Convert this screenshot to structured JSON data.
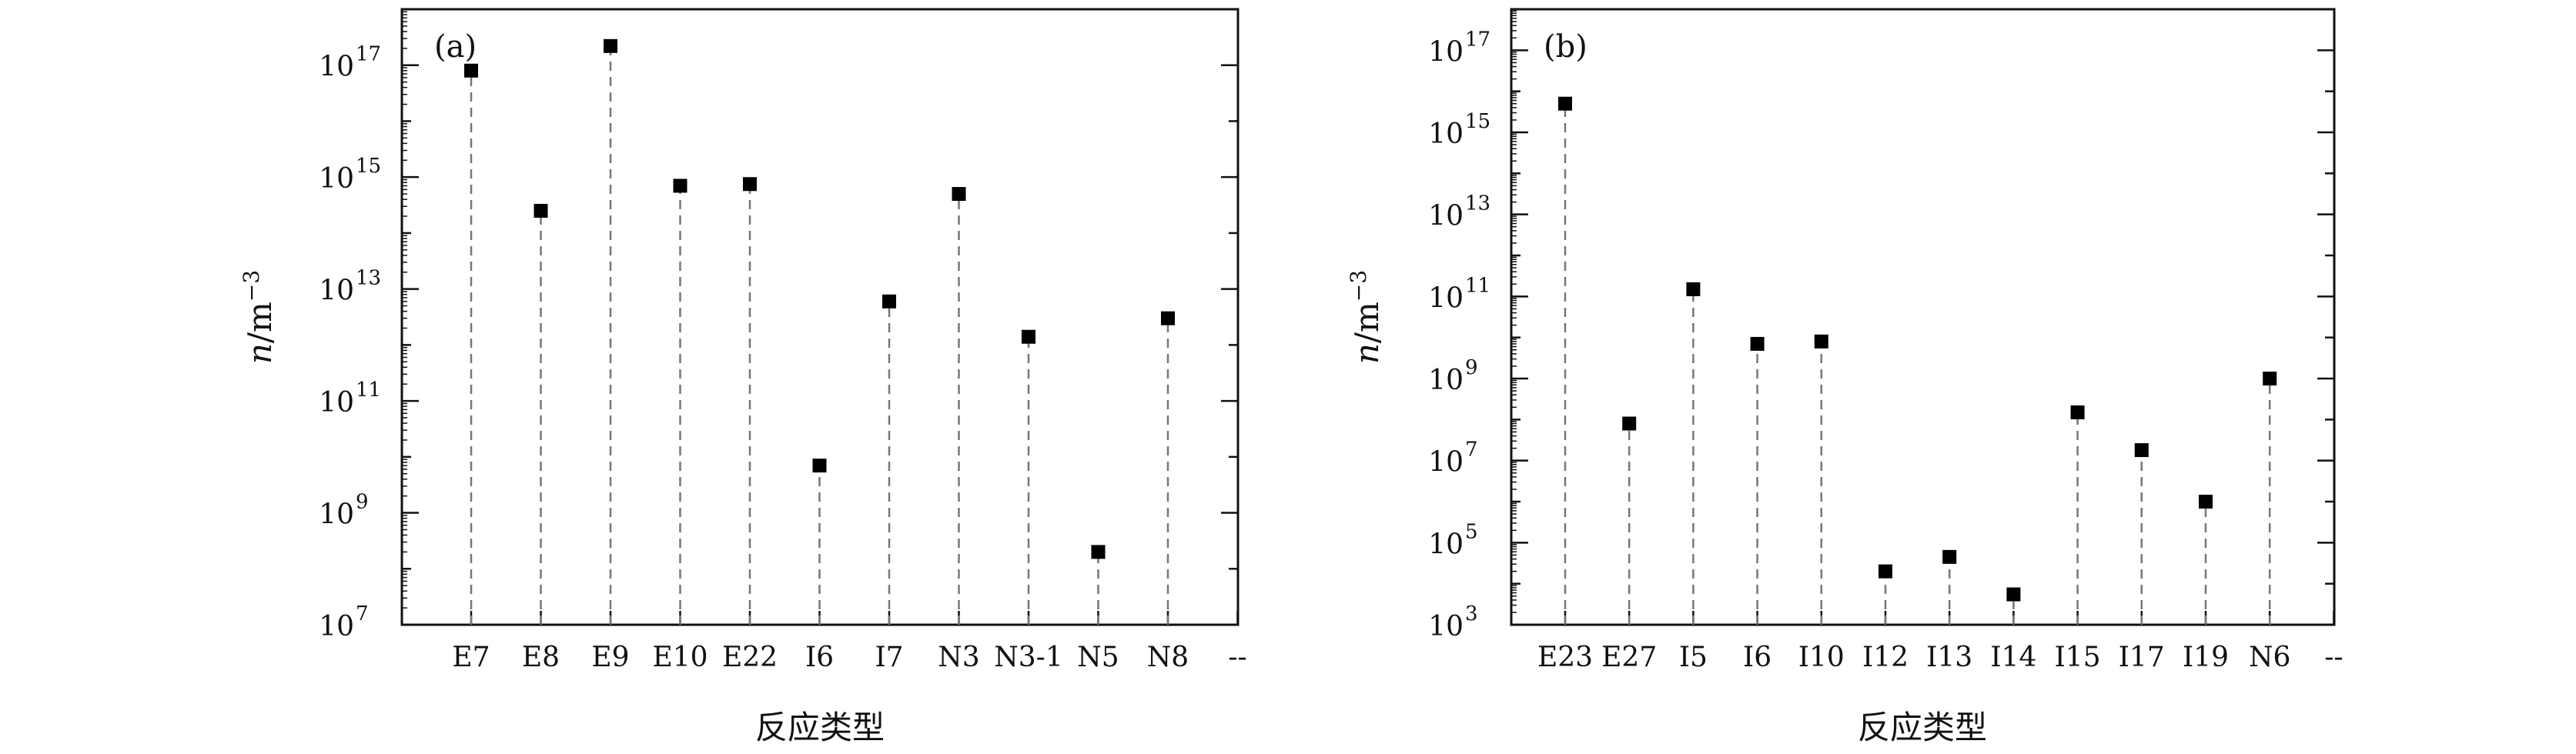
{
  "chart_data": [
    {
      "panel_label": "(a)",
      "type": "scatter",
      "scale": "log",
      "categories": [
        "E7",
        "E8",
        "E9",
        "E10",
        "E22",
        "I6",
        "I7",
        "N3",
        "N3-1",
        "N5",
        "N8"
      ],
      "trailing_tick_label": "--",
      "values": [
        8e+16,
        250000000000000.0,
        2.2e+17,
        700000000000000.0,
        750000000000000.0,
        7000000000.0,
        6000000000000.0,
        500000000000000.0,
        1400000000000.0,
        200000000.0,
        3000000000000.0
      ],
      "xlabel": "反应类型",
      "ylabel": {
        "italic": "n",
        "rest": "/m",
        "exponent": "−3"
      },
      "ylim": [
        10000000.0,
        1e+18
      ],
      "y_tick_labels": [
        {
          "base": "10",
          "exp": "7"
        },
        {
          "base": "10",
          "exp": "9"
        },
        {
          "base": "10",
          "exp": "11"
        },
        {
          "base": "10",
          "exp": "13"
        },
        {
          "base": "10",
          "exp": "15"
        },
        {
          "base": "10",
          "exp": "17"
        }
      ],
      "marker_color": "#000000",
      "stem_color": "#777777"
    },
    {
      "panel_label": "(b)",
      "type": "scatter",
      "scale": "log",
      "categories": [
        "E23",
        "E27",
        "I5",
        "I6",
        "I10",
        "I12",
        "I13",
        "I14",
        "I15",
        "I17",
        "I19",
        "N6"
      ],
      "trailing_tick_label": "--",
      "values": [
        5000000000000000.0,
        80000000.0,
        150000000000.0,
        7000000000.0,
        8000000000.0,
        20000.0,
        45000.0,
        5500.0,
        150000000.0,
        18000000.0,
        1000000.0,
        1000000000.0
      ],
      "xlabel": "反应类型",
      "ylabel": {
        "italic": "n",
        "rest": "/m",
        "exponent": "−3"
      },
      "ylim": [
        1000.0,
        1e+18
      ],
      "y_tick_labels": [
        {
          "base": "10",
          "exp": "3"
        },
        {
          "base": "10",
          "exp": "5"
        },
        {
          "base": "10",
          "exp": "7"
        },
        {
          "base": "10",
          "exp": "9"
        },
        {
          "base": "10",
          "exp": "11"
        },
        {
          "base": "10",
          "exp": "13"
        },
        {
          "base": "10",
          "exp": "15"
        },
        {
          "base": "10",
          "exp": "17"
        }
      ],
      "marker_color": "#000000",
      "stem_color": "#777777"
    }
  ]
}
